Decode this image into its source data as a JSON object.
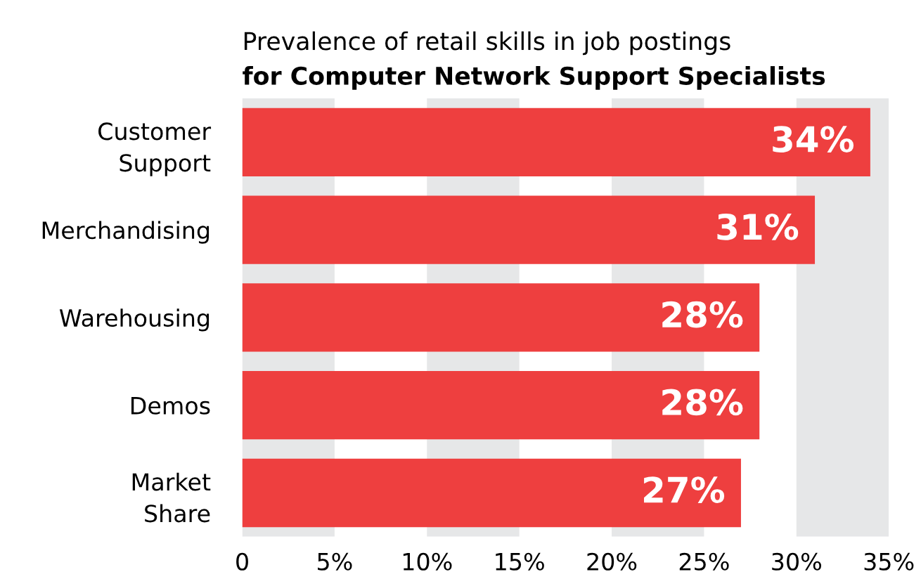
{
  "chart_data": {
    "type": "bar",
    "orientation": "horizontal",
    "title": "Prevalence of retail skills in job postings",
    "subtitle": "for Computer Network Support Specialists",
    "categories": [
      "Customer\nSupport",
      "Merchandising",
      "Warehousing",
      "Demos",
      "Market\nShare"
    ],
    "values": [
      34,
      31,
      28,
      28,
      27
    ],
    "value_labels": [
      "34%",
      "31%",
      "28%",
      "28%",
      "27%"
    ],
    "color": "#ee3f3f",
    "xlim": [
      0,
      35
    ],
    "xticks": [
      0,
      {
        "value": 5,
        "label": "5%"
      },
      {
        "value": 10,
        "label": "10%"
      },
      {
        "value": 15,
        "label": "15%"
      },
      {
        "value": 20,
        "label": "20%"
      },
      {
        "value": 25,
        "label": "25%"
      },
      {
        "value": 30,
        "label": "30%"
      },
      {
        "value": 35,
        "label": "35%"
      }
    ],
    "bands": [
      {
        "axis": "x",
        "from": 0,
        "to": 5,
        "color": "#e6e7e8"
      },
      {
        "axis": "x",
        "from": 10,
        "to": 15,
        "color": "#e6e7e8"
      },
      {
        "axis": "x",
        "from": 20,
        "to": 25,
        "color": "#e6e7e8"
      },
      {
        "axis": "x",
        "from": 30,
        "to": 35,
        "color": "#e6e7e8"
      }
    ],
    "grid": false,
    "legend": false
  }
}
